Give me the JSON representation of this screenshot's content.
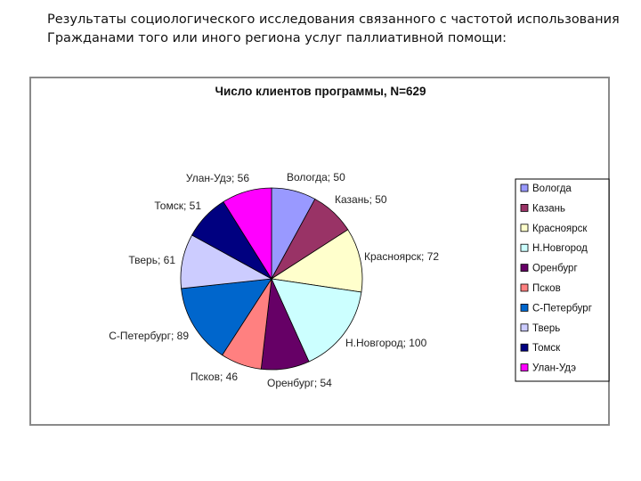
{
  "heading": {
    "line1": "Результаты социологического исследования связанного с частотой использования",
    "line2": "Гражданами того или иного региона услуг паллиативной помощи:"
  },
  "chart_data": {
    "type": "pie",
    "title": "Число клиентов программы, N=629",
    "categories": [
      "Вологда",
      "Казань",
      "Красноярск",
      "Н.Новгород",
      "Оренбург",
      "Псков",
      "С-Петербург",
      "Тверь",
      "Томск",
      "Улан-Удэ"
    ],
    "values": [
      50,
      50,
      72,
      100,
      54,
      46,
      89,
      61,
      51,
      56
    ],
    "slice_labels": [
      "Вологда; 50",
      "Казань; 50",
      "Красноярск; 72",
      "Н.Новгород; 100",
      "Оренбург; 54",
      "Псков; 46",
      "С-Петербург; 89",
      "Тверь; 61",
      "Томск; 51",
      "Улан-Удэ; 56"
    ],
    "colors": [
      "#9999ff",
      "#993366",
      "#ffffcc",
      "#ccffff",
      "#660066",
      "#ff8080",
      "#0066cc",
      "#ccccff",
      "#000080",
      "#ff00ff"
    ],
    "legend_position": "right",
    "start_angle": "12 o'clock",
    "direction": "clockwise"
  }
}
